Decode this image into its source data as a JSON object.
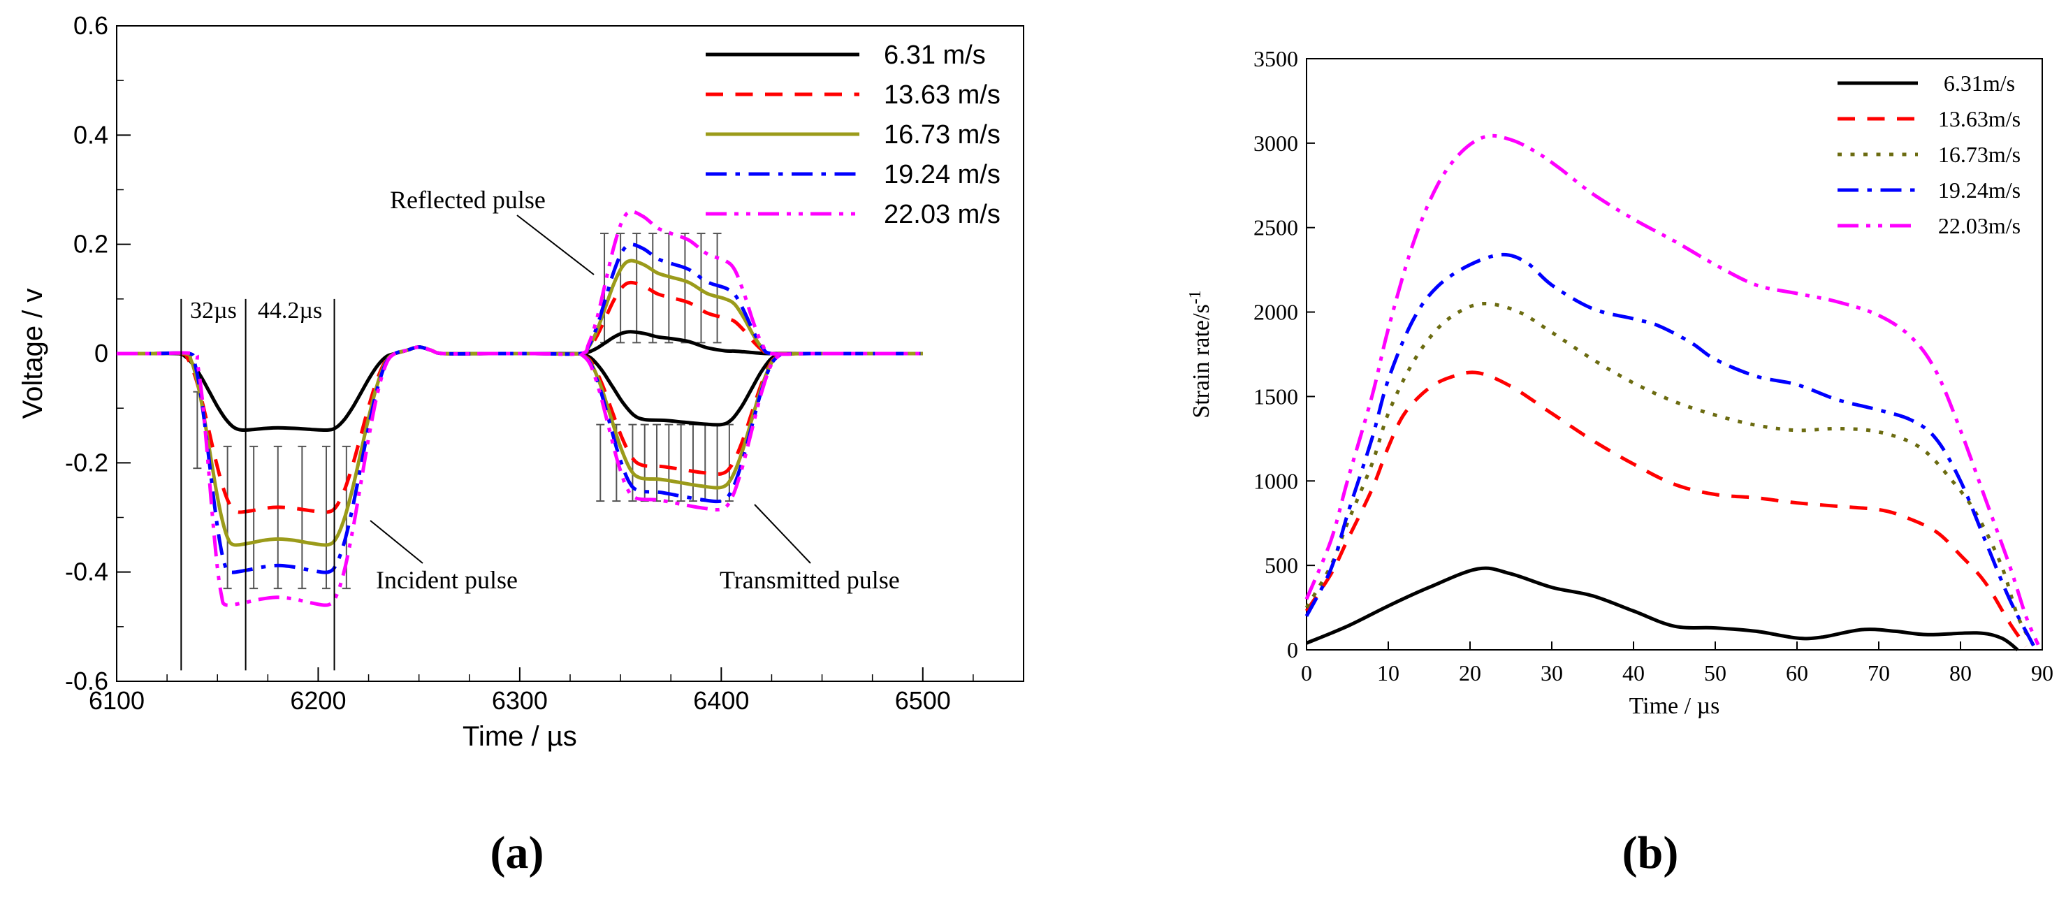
{
  "figure": {
    "label_a": "(a)",
    "label_b": "(b)"
  },
  "chart_data": [
    {
      "id": "a",
      "type": "line",
      "xlabel": "Time / µs",
      "ylabel": "Voltage / v",
      "xlim": [
        6100,
        6550
      ],
      "ylim": [
        -0.6,
        0.6
      ],
      "xticks": [
        6100,
        6200,
        6300,
        6400,
        6500
      ],
      "yticks": [
        -0.6,
        -0.4,
        -0.2,
        0,
        0.2,
        0.4,
        0.6
      ],
      "ytick_labels": [
        "-0.6",
        "-0.4",
        "-0.2",
        "0",
        "0.2",
        "0.4",
        "0.6"
      ],
      "legend_position": "top-right",
      "annotations": {
        "reflected": "Reflected pulse",
        "incident": "Incident pulse",
        "transmitted": "Transmitted pulse",
        "t1": "32µs",
        "t2": "44.2µs"
      },
      "marker_times": [
        6132,
        6164,
        6208
      ],
      "series": [
        {
          "name": "6.31 m/s",
          "color": "#000000",
          "dash": "solid",
          "incident": -0.14,
          "reflected": 0.04,
          "transmitted": -0.13,
          "reflected_end": 0.005
        },
        {
          "name": "13.63 m/s",
          "color": "#ff0000",
          "dash": "dash",
          "incident": -0.29,
          "reflected": 0.13,
          "transmitted": -0.22,
          "reflected_end": 0.065
        },
        {
          "name": "16.73 m/s",
          "color": "#9b9b1a",
          "dash": "solid",
          "incident": -0.35,
          "reflected": 0.17,
          "transmitted": -0.245,
          "reflected_end": 0.1
        },
        {
          "name": "19.24 m/s",
          "color": "#0000ff",
          "dash": "dashdot",
          "incident": -0.4,
          "reflected": 0.2,
          "transmitted": -0.27,
          "reflected_end": 0.12
        },
        {
          "name": "22.03 m/s",
          "color": "#ff00ff",
          "dash": "dashdotdot",
          "incident": -0.46,
          "reflected": 0.26,
          "transmitted": -0.285,
          "reflected_end": 0.17
        }
      ]
    },
    {
      "id": "b",
      "type": "line",
      "xlabel": "Time / µs",
      "ylabel": "Strain rate/s",
      "ylabel_sup": "-1",
      "xlim": [
        0,
        90
      ],
      "ylim": [
        0,
        3500
      ],
      "xticks": [
        0,
        10,
        20,
        30,
        40,
        50,
        60,
        70,
        80,
        90
      ],
      "yticks": [
        0,
        500,
        1000,
        1500,
        2000,
        2500,
        3000,
        3500
      ],
      "legend_position": "top-right",
      "series": [
        {
          "name": "6.31m/s",
          "color": "#000000",
          "dash": "solid",
          "x": [
            0,
            5,
            10,
            15,
            21,
            25,
            30,
            35,
            40,
            45,
            50,
            55,
            60,
            63,
            68,
            72,
            76,
            82,
            85,
            87
          ],
          "y": [
            40,
            140,
            260,
            370,
            480,
            450,
            370,
            320,
            230,
            140,
            130,
            110,
            70,
            75,
            120,
            110,
            90,
            100,
            70,
            0
          ]
        },
        {
          "name": "13.63m/s",
          "color": "#ff0000",
          "dash": "dash",
          "x": [
            0,
            3,
            5,
            8,
            10,
            12,
            15,
            18,
            21,
            25,
            30,
            35,
            40,
            45,
            50,
            55,
            60,
            65,
            70,
            73,
            77,
            80,
            83,
            86,
            88
          ],
          "y": [
            230,
            450,
            650,
            950,
            1200,
            1400,
            1550,
            1620,
            1640,
            1560,
            1400,
            1240,
            1100,
            980,
            920,
            900,
            870,
            850,
            830,
            790,
            700,
            560,
            400,
            160,
            20
          ]
        },
        {
          "name": "16.73m/s",
          "color": "#6b6b10",
          "dash": "dot",
          "x": [
            0,
            3,
            5,
            8,
            10,
            13,
            16,
            19,
            22,
            26,
            30,
            35,
            40,
            45,
            50,
            55,
            60,
            65,
            70,
            75,
            79,
            82,
            85,
            87,
            89
          ],
          "y": [
            250,
            500,
            750,
            1100,
            1400,
            1700,
            1900,
            2010,
            2050,
            2000,
            1880,
            1720,
            1580,
            1470,
            1390,
            1330,
            1300,
            1310,
            1290,
            1200,
            1000,
            800,
            500,
            200,
            20
          ]
        },
        {
          "name": "19.24m/s",
          "color": "#0000ff",
          "dash": "dashdot",
          "x": [
            0,
            3,
            5,
            8,
            10,
            13,
            16,
            20,
            24,
            27,
            30,
            35,
            40,
            43,
            47,
            50,
            55,
            60,
            65,
            70,
            74,
            77,
            80,
            83,
            86,
            89
          ],
          "y": [
            200,
            480,
            800,
            1250,
            1600,
            1950,
            2150,
            2280,
            2340,
            2290,
            2160,
            2020,
            1960,
            1920,
            1820,
            1720,
            1620,
            1570,
            1480,
            1420,
            1360,
            1250,
            1000,
            650,
            300,
            20
          ]
        },
        {
          "name": "22.03m/s",
          "color": "#ff00ff",
          "dash": "dashdotdot",
          "x": [
            0,
            3,
            5,
            8,
            10,
            13,
            16,
            19,
            22,
            25,
            28,
            31,
            35,
            40,
            45,
            50,
            55,
            60,
            65,
            70,
            74,
            77,
            80,
            83,
            86,
            88,
            89.5
          ],
          "y": [
            300,
            650,
            1000,
            1500,
            1900,
            2400,
            2750,
            2950,
            3040,
            3020,
            2950,
            2850,
            2700,
            2550,
            2420,
            2280,
            2160,
            2110,
            2060,
            1980,
            1850,
            1650,
            1300,
            900,
            500,
            200,
            30
          ]
        }
      ]
    }
  ]
}
